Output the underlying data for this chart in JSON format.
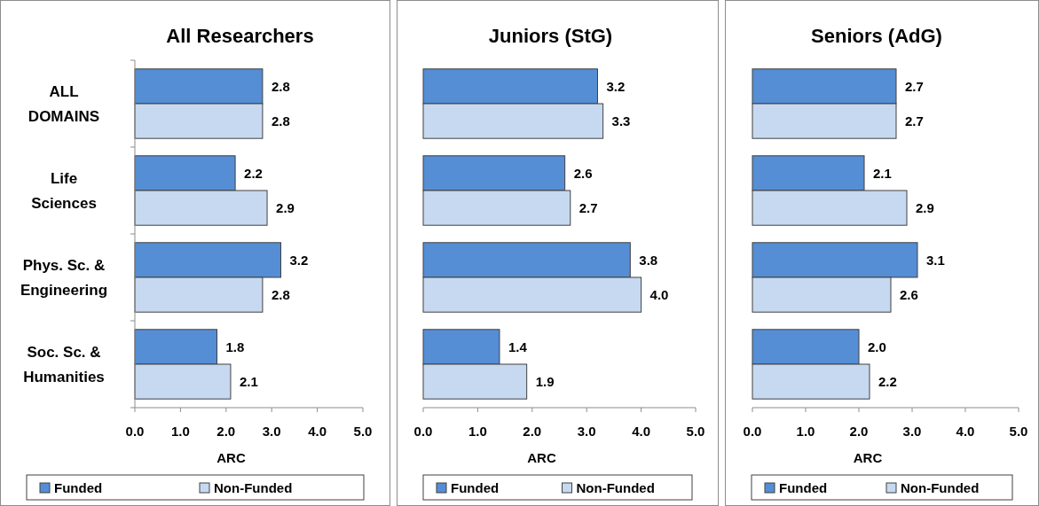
{
  "chart_data": [
    {
      "type": "bar",
      "orientation": "horizontal",
      "title": "All Researchers",
      "xlabel": "ARC",
      "categories": [
        "ALL DOMAINS",
        "Life Sciences",
        "Phys. Sc. & Engineering",
        "Soc. Sc. & Humanities"
      ],
      "xlim": [
        0,
        5
      ],
      "xticks": [
        {
          "value": 0,
          "label": "0.0"
        },
        {
          "value": 1,
          "label": "1.0"
        },
        {
          "value": 2,
          "label": "2.0"
        },
        {
          "value": 3,
          "label": "3.0"
        },
        {
          "value": 4,
          "label": "4.0"
        },
        {
          "value": 5,
          "label": "5.0"
        }
      ],
      "data_labels": true,
      "legend": "bottom",
      "series": [
        {
          "name": "Funded",
          "color": "#558ed5",
          "values": [
            2.8,
            2.2,
            3.2,
            1.8
          ]
        },
        {
          "name": "Non-Funded",
          "color": "#c6d9f1",
          "values": [
            2.8,
            2.9,
            2.8,
            2.1
          ]
        }
      ]
    },
    {
      "type": "bar",
      "orientation": "horizontal",
      "title": "Juniors (StG)",
      "xlabel": "ARC",
      "categories": [
        null,
        null,
        null,
        null
      ],
      "tick_labels": "x",
      "xlim": [
        0,
        5
      ],
      "xticks": [
        {
          "value": 0,
          "label": "0.0"
        },
        {
          "value": 1,
          "label": "1.0"
        },
        {
          "value": 2,
          "label": "2.0"
        },
        {
          "value": 3,
          "label": "3.0"
        },
        {
          "value": 4,
          "label": "4.0"
        },
        {
          "value": 5,
          "label": "5.0"
        }
      ],
      "data_labels": true,
      "legend": "bottom",
      "series": [
        {
          "name": "Funded",
          "color": "#558ed5",
          "values": [
            3.2,
            2.6,
            3.8,
            1.4
          ]
        },
        {
          "name": "Non-Funded",
          "color": "#c6d9f1",
          "values": [
            3.3,
            2.7,
            4.0,
            1.9
          ],
          "value_labels": [
            "3.3",
            "2.7",
            "4.0",
            "1.9"
          ]
        }
      ]
    },
    {
      "type": "bar",
      "orientation": "horizontal",
      "title": "Seniors (AdG)",
      "xlabel": "ARC",
      "categories": [
        null,
        null,
        null,
        null
      ],
      "tick_labels": "x",
      "xlim": [
        0,
        5
      ],
      "xticks": [
        {
          "value": 0,
          "label": "0.0"
        },
        {
          "value": 1,
          "label": "1.0"
        },
        {
          "value": 2,
          "label": "2.0"
        },
        {
          "value": 3,
          "label": "3.0"
        },
        {
          "value": 4,
          "label": "4.0"
        },
        {
          "value": 5,
          "label": "5.0"
        }
      ],
      "data_labels": true,
      "legend": "bottom",
      "series": [
        {
          "name": "Funded",
          "color": "#558ed5",
          "values": [
            2.7,
            2.1,
            3.1,
            2.0
          ],
          "value_labels": [
            "2.7",
            "2.1",
            "3.1",
            "2.0"
          ]
        },
        {
          "name": "Non-Funded",
          "color": "#c6d9f1",
          "values": [
            2.7,
            2.9,
            2.6,
            2.2
          ]
        }
      ]
    }
  ]
}
